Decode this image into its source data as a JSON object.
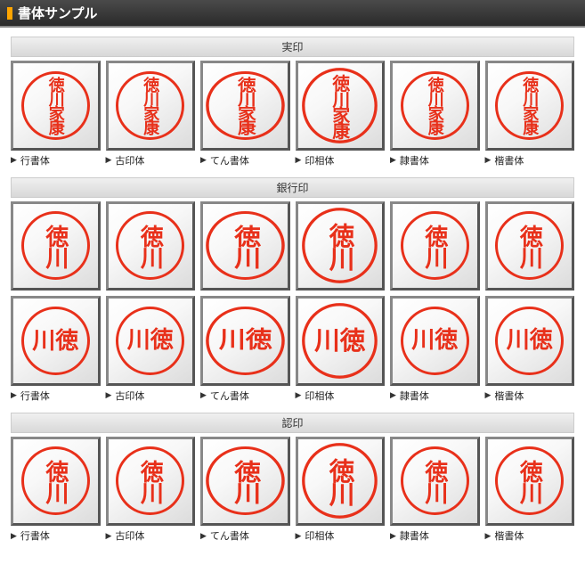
{
  "header": {
    "title": "書体サンプル"
  },
  "colors": {
    "stamp_ink": "#e8301a",
    "frame_dark": "#555555",
    "frame_light": "#888888",
    "box_bg_start": "#ffffff",
    "box_bg_end": "#dcdcdc",
    "section_bg_start": "#f0f0f0",
    "section_bg_end": "#d8d8d8"
  },
  "font_labels": [
    "行書体",
    "古印体",
    "てん書体",
    "印相体",
    "隷書体",
    "楷書体"
  ],
  "sections": [
    {
      "title": "実印",
      "rows": [
        {
          "show_labels": true,
          "stamps": [
            {
              "text": "徳川家康",
              "layout": "v2x2",
              "font_class": "style-gyou",
              "size": 18
            },
            {
              "text": "徳川家康",
              "layout": "v2x2",
              "font_class": "style-koin",
              "size": 18
            },
            {
              "text": "徳川家康",
              "layout": "v2x2",
              "font_class": "style-tensho",
              "size": 18
            },
            {
              "text": "徳川家康",
              "layout": "v2x2",
              "font_class": "style-insho",
              "size": 18
            },
            {
              "text": "徳川家康",
              "layout": "v2x2",
              "font_class": "style-rei",
              "size": 18
            },
            {
              "text": "徳川家康",
              "layout": "v2x2",
              "font_class": "style-kai",
              "size": 18
            }
          ]
        }
      ]
    },
    {
      "title": "銀行印",
      "rows": [
        {
          "show_labels": false,
          "stamps": [
            {
              "text": "徳川",
              "layout": "v1",
              "font_class": "style-gyou",
              "size": 26
            },
            {
              "text": "徳川",
              "layout": "v1",
              "font_class": "style-koin",
              "size": 26
            },
            {
              "text": "徳川",
              "layout": "v1",
              "font_class": "style-tensho",
              "size": 26
            },
            {
              "text": "徳川",
              "layout": "v1",
              "font_class": "style-insho",
              "size": 26
            },
            {
              "text": "徳川",
              "layout": "v1",
              "font_class": "style-rei",
              "size": 26
            },
            {
              "text": "徳川",
              "layout": "v1",
              "font_class": "style-kai",
              "size": 26
            }
          ]
        },
        {
          "show_labels": true,
          "stamps": [
            {
              "text": "川徳",
              "layout": "h1",
              "font_class": "style-gyou",
              "size": 26
            },
            {
              "text": "川徳",
              "layout": "h1",
              "font_class": "style-koin",
              "size": 26
            },
            {
              "text": "川徳",
              "layout": "h1",
              "font_class": "style-tensho",
              "size": 26
            },
            {
              "text": "川徳",
              "layout": "h1",
              "font_class": "style-insho",
              "size": 26
            },
            {
              "text": "川徳",
              "layout": "h1",
              "font_class": "style-rei",
              "size": 26
            },
            {
              "text": "川徳",
              "layout": "h1",
              "font_class": "style-kai",
              "size": 26
            }
          ]
        }
      ]
    },
    {
      "title": "認印",
      "rows": [
        {
          "show_labels": true,
          "stamps": [
            {
              "text": "徳川",
              "layout": "v1",
              "font_class": "style-gyou",
              "size": 26
            },
            {
              "text": "徳川",
              "layout": "v1",
              "font_class": "style-koin",
              "size": 26
            },
            {
              "text": "徳川",
              "layout": "v1",
              "font_class": "style-tensho",
              "size": 26
            },
            {
              "text": "徳川",
              "layout": "v1",
              "font_class": "style-insho",
              "size": 26
            },
            {
              "text": "徳川",
              "layout": "v1",
              "font_class": "style-rei",
              "size": 26
            },
            {
              "text": "徳川",
              "layout": "v1",
              "font_class": "style-kai",
              "size": 26
            }
          ]
        }
      ]
    }
  ]
}
